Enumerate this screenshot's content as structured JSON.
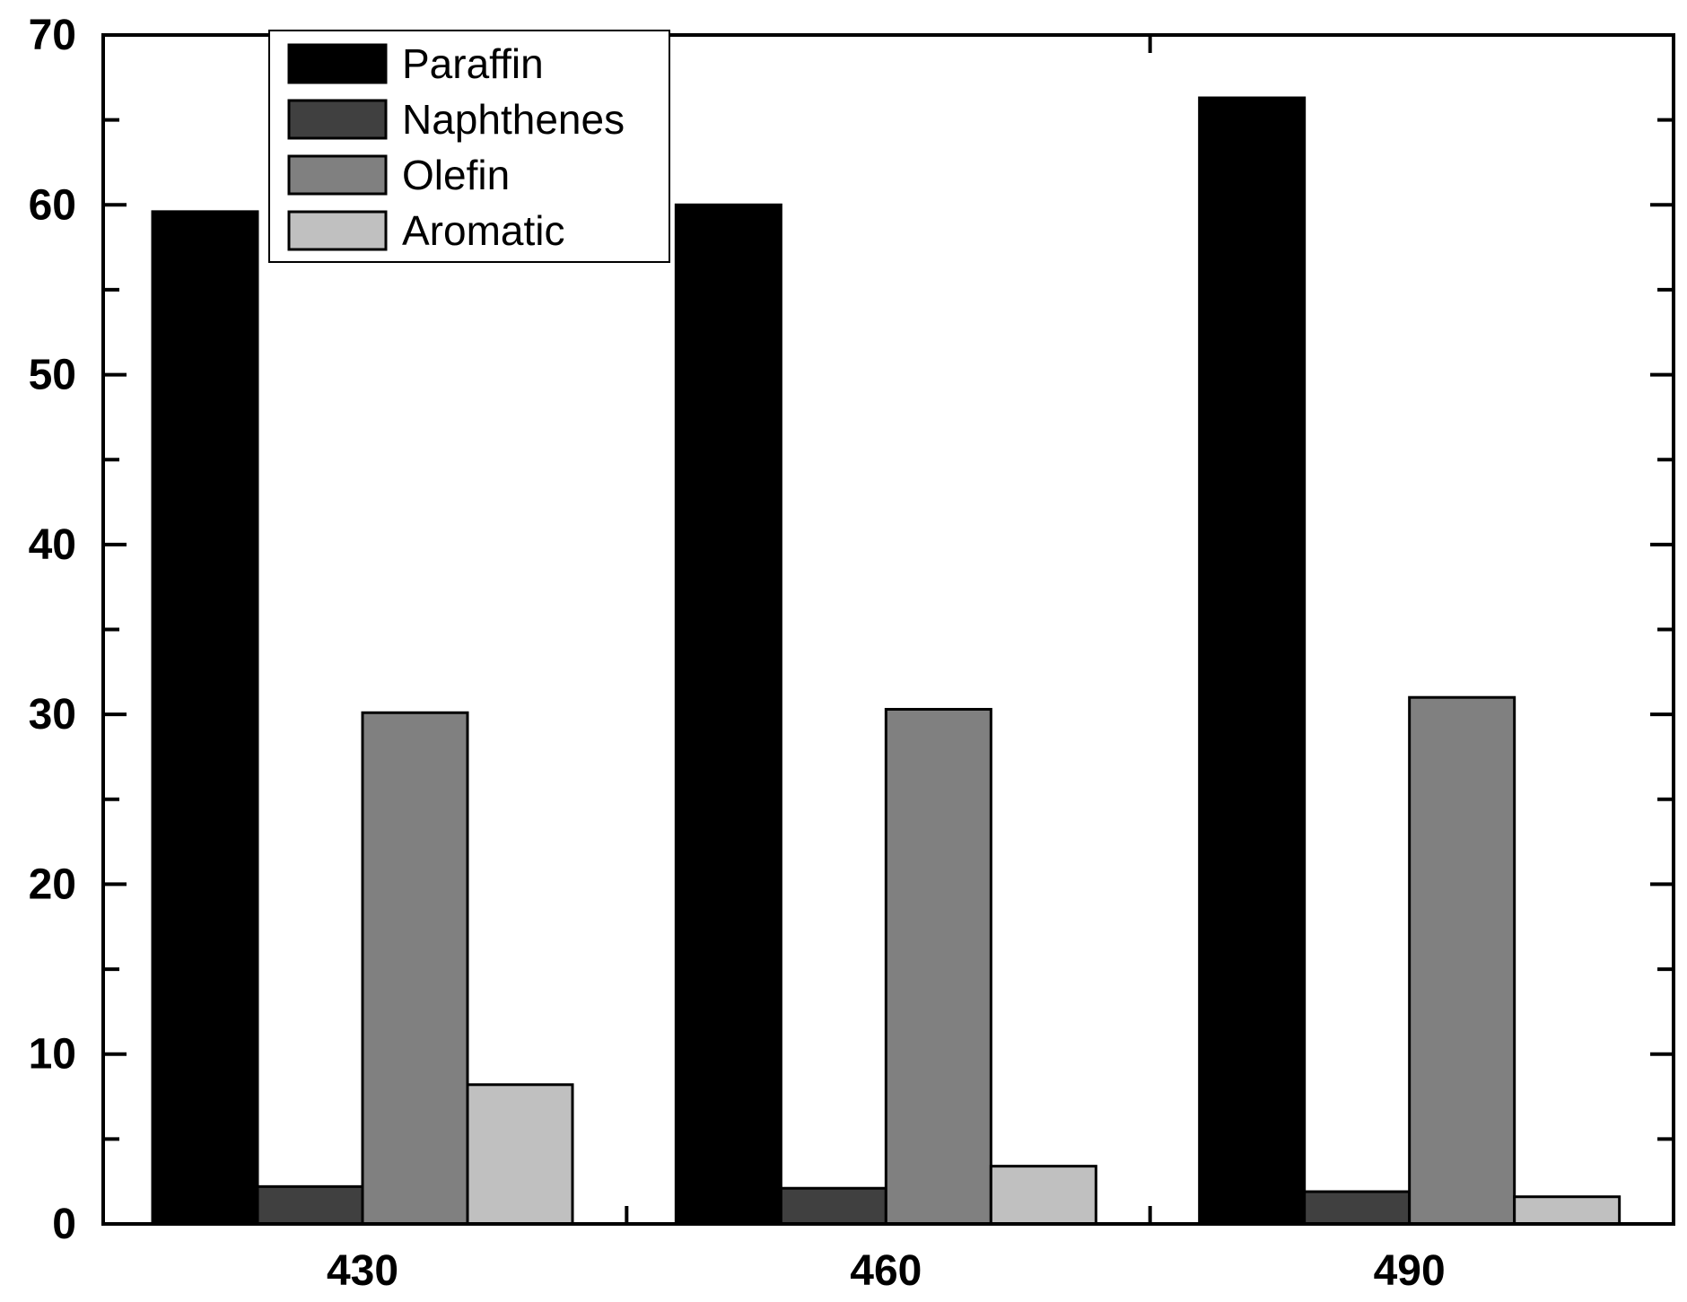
{
  "chart_data": {
    "type": "bar",
    "title": "",
    "xlabel": "",
    "ylabel": "",
    "categories": [
      "430",
      "460",
      "490"
    ],
    "series": [
      {
        "name": "Paraffin",
        "color": "#000000",
        "values": [
          59.6,
          60.0,
          66.3
        ]
      },
      {
        "name": "Naphthenes",
        "color": "#404040",
        "values": [
          2.2,
          2.1,
          1.9
        ]
      },
      {
        "name": "Olefin",
        "color": "#808080",
        "values": [
          30.1,
          30.3,
          31.0
        ]
      },
      {
        "name": "Aromatic",
        "color": "#c0c0c0",
        "values": [
          8.2,
          3.4,
          1.6
        ]
      }
    ],
    "ylim": [
      0,
      70
    ],
    "yticks": [
      0,
      10,
      20,
      30,
      40,
      50,
      60,
      70
    ],
    "legend": "top-left",
    "grid": false
  }
}
